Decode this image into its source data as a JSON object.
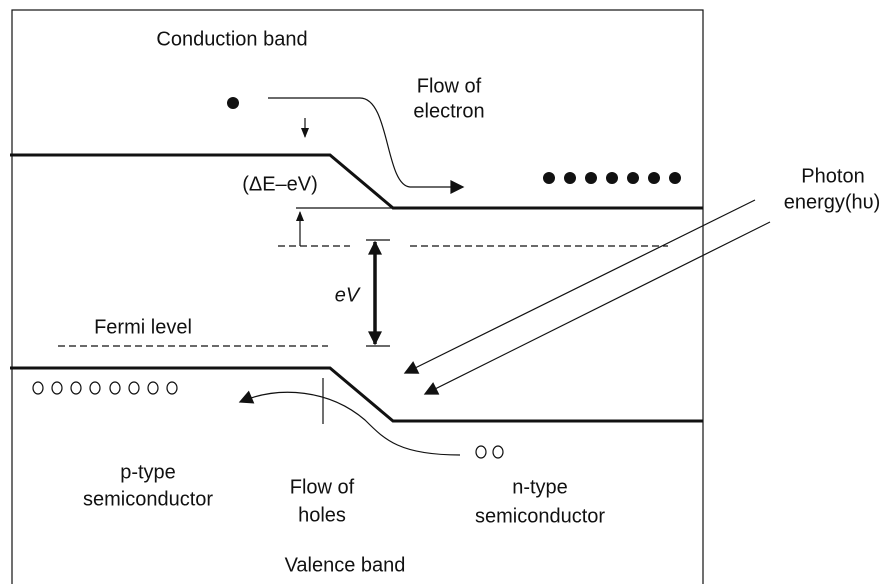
{
  "labels": {
    "conduction_band": "Conduction band",
    "flow_of_electron": [
      "Flow of",
      "electron"
    ],
    "delta_e_minus_ev": "(ΔE–eV)",
    "photon_energy": [
      "Photon",
      "energy(hυ)"
    ],
    "ev": "eV",
    "fermi_level": "Fermi level",
    "p_type": [
      "p-type",
      "semiconductor"
    ],
    "flow_of_holes": [
      "Flow of",
      "holes"
    ],
    "n_type": [
      "n-type",
      "semiconductor"
    ],
    "valence_band": "Valence band"
  }
}
